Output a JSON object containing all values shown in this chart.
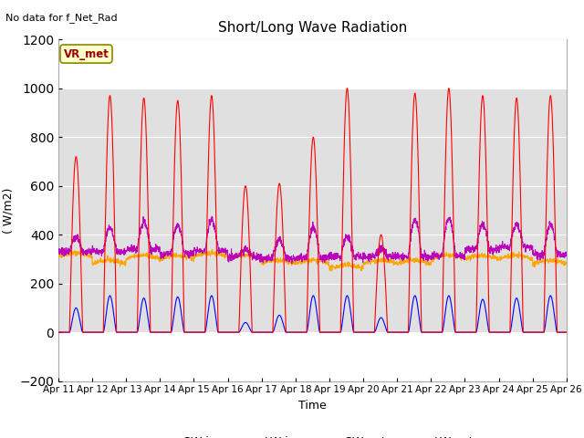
{
  "title": "Short/Long Wave Radiation",
  "xlabel": "Time",
  "ylabel": "( W/m2)",
  "ylim": [
    -200,
    1200
  ],
  "yticks": [
    -200,
    0,
    200,
    400,
    600,
    800,
    1000,
    1200
  ],
  "x_labels": [
    "Apr 11",
    "Apr 12",
    "Apr 13",
    "Apr 14",
    "Apr 15",
    "Apr 16",
    "Apr 17",
    "Apr 18",
    "Apr 19",
    "Apr 20",
    "Apr 21",
    "Apr 22",
    "Apr 23",
    "Apr 24",
    "Apr 25",
    "Apr 26"
  ],
  "annotation_text": "No data for f_Net_Rad",
  "legend_label_text": "VR_met",
  "bg_gray_band_low": 0,
  "bg_gray_band_high": 1000,
  "sw_in_color": "#FF0000",
  "lw_in_color": "#FFA500",
  "sw_out_color": "#0000FF",
  "lw_out_color": "#BB00BB",
  "n_days": 15,
  "points_per_day": 144,
  "sw_in_peaks": [
    720,
    970,
    960,
    950,
    970,
    600,
    610,
    800,
    1000,
    400,
    980,
    1000,
    970,
    960,
    970
  ],
  "sw_out_peaks": [
    100,
    150,
    140,
    145,
    150,
    40,
    70,
    150,
    150,
    60,
    150,
    150,
    135,
    140,
    150
  ],
  "lw_in_base": [
    310,
    280,
    300,
    300,
    310,
    300,
    280,
    280,
    260,
    280,
    280,
    300,
    300,
    300,
    280
  ],
  "lw_out_day": [
    390,
    430,
    450,
    440,
    460,
    340,
    380,
    430,
    390,
    340,
    460,
    470,
    440,
    440,
    440
  ],
  "lw_out_night": [
    330,
    330,
    340,
    320,
    335,
    310,
    305,
    305,
    310,
    310,
    310,
    315,
    340,
    350,
    320
  ]
}
